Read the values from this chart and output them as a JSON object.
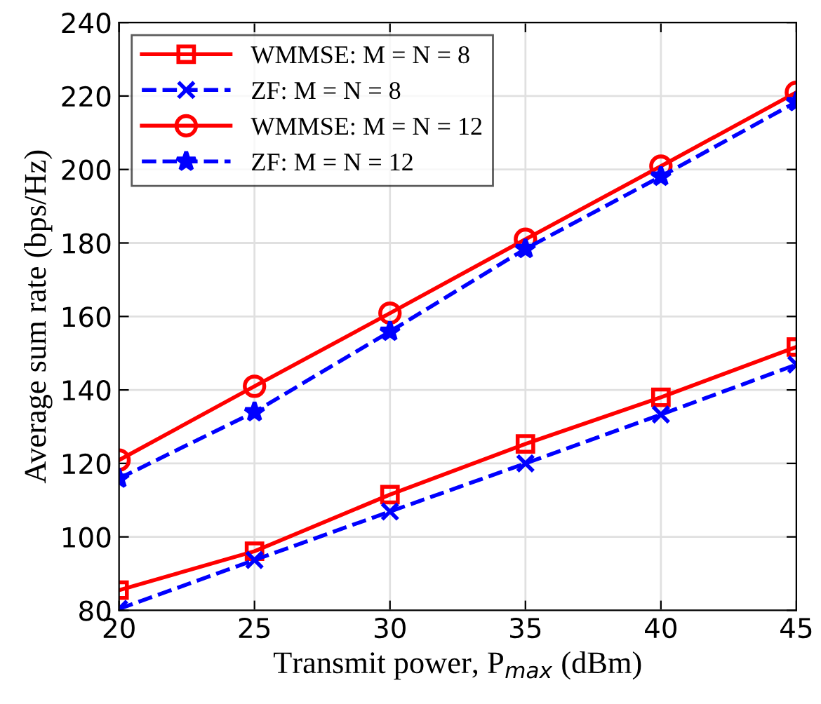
{
  "chart_data": {
    "type": "line",
    "xlabel": "Transmit power, P$_{max}$ (dBm)",
    "ylabel": "Average sum rate (bps/Hz)",
    "x": [
      20,
      25,
      30,
      35,
      40,
      45
    ],
    "series": [
      {
        "name": "WMMSE: M = N = 8",
        "color": "#ff0000",
        "marker": "square",
        "line_style": "solid",
        "values": [
          85.5,
          96.1,
          111.5,
          125.3,
          138.0,
          151.7
        ]
      },
      {
        "name": "ZF: M = N = 8",
        "color": "#0000ff",
        "marker": "cross",
        "line_style": "dashed",
        "values": [
          80.4,
          93.7,
          106.9,
          120.0,
          133.3,
          146.9
        ]
      },
      {
        "name": "WMMSE: M = N = 12",
        "color": "#ff0000",
        "marker": "circle",
        "line_style": "solid",
        "values": [
          120.9,
          141.0,
          160.9,
          181.0,
          200.9,
          221.0
        ]
      },
      {
        "name": "ZF: M = N = 12",
        "color": "#0000ff",
        "marker": "star",
        "line_style": "dashed",
        "values": [
          115.9,
          134.0,
          155.9,
          178.4,
          198.1,
          218.4
        ]
      }
    ],
    "xlim": [
      20,
      45
    ],
    "xticks": [
      20,
      25,
      30,
      35,
      40,
      45
    ],
    "ylim": [
      80,
      240
    ],
    "yticks": [
      80,
      100,
      120,
      140,
      160,
      180,
      200,
      220,
      240
    ],
    "grid": true,
    "legend": "top left"
  }
}
